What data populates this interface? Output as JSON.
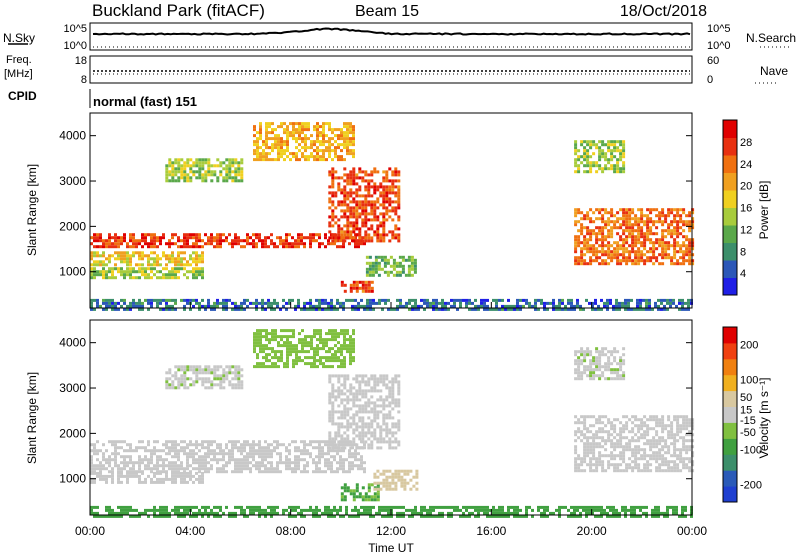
{
  "header": {
    "site": "Buckland Park (fitACF)",
    "beam": "Beam 15",
    "date": "18/Oct/2018"
  },
  "noise_panel": {
    "left_label": "N.Sky",
    "right_label": "N.Search",
    "left_ticks": [
      "10^5",
      "10^0"
    ],
    "right_ticks": [
      "10^5",
      "10^0"
    ]
  },
  "freq_panel": {
    "left_label_line1": "Freq.",
    "left_label_line2": "[MHz]",
    "left_ticks": [
      "18",
      "8"
    ],
    "right_ticks": [
      "60",
      "0"
    ],
    "right_label": "Nave"
  },
  "cpid_panel": {
    "label": "CPID",
    "mode": "normal (fast) 151"
  },
  "colors": {
    "power_scale": [
      "#1f1fe6",
      "#2b57b8",
      "#3c8f6b",
      "#5aa84a",
      "#a8cc3c",
      "#f0d020",
      "#f0a020",
      "#f07010",
      "#e83010",
      "#e00000"
    ],
    "velocity_scale": [
      "#e00000",
      "#f04010",
      "#f08010",
      "#f0b020",
      "#d8c8a0",
      "#c8c8c8",
      "#80c040",
      "#40a040",
      "#3c8f6b",
      "#2a5ab8",
      "#1f3fd0"
    ]
  },
  "chart_data": [
    {
      "type": "heatmap",
      "name": "power",
      "ylabel": "Slant Range [km]",
      "yticks": [
        1000,
        2000,
        3000,
        4000
      ],
      "ylim": [
        200,
        4500
      ],
      "xlim": [
        0,
        24
      ],
      "colorbar": {
        "label": "Power [dB]",
        "ticks": [
          4,
          8,
          12,
          16,
          20,
          24,
          28
        ],
        "range": [
          0,
          32
        ]
      },
      "features": [
        {
          "t0": 0,
          "t1": 11,
          "r0": 1550,
          "r1": 1850,
          "value": 27
        },
        {
          "t0": 0,
          "t1": 4.5,
          "r0": 1150,
          "r1": 1450,
          "value": 18
        },
        {
          "t0": 0,
          "t1": 4.5,
          "r0": 900,
          "r1": 1100,
          "value": 14
        },
        {
          "t0": 9.5,
          "t1": 12.3,
          "r0": 1700,
          "r1": 3300,
          "value": 26
        },
        {
          "t0": 3,
          "t1": 6,
          "r0": 3000,
          "r1": 3500,
          "value": 14
        },
        {
          "t0": 6.5,
          "t1": 10.5,
          "r0": 3500,
          "r1": 4300,
          "value": 20
        },
        {
          "t0": 10,
          "t1": 11.3,
          "r0": 550,
          "r1": 800,
          "value": 26
        },
        {
          "t0": 11,
          "t1": 13,
          "r0": 900,
          "r1": 1350,
          "value": 12
        },
        {
          "t0": 19.3,
          "t1": 24,
          "r0": 1200,
          "r1": 2400,
          "value": 24
        },
        {
          "t0": 19.3,
          "t1": 21.3,
          "r0": 3200,
          "r1": 3900,
          "value": 14
        },
        {
          "t0": 0,
          "t1": 24,
          "r0": 200,
          "r1": 400,
          "value": 6
        }
      ]
    },
    {
      "type": "heatmap",
      "name": "velocity",
      "ylabel": "Slant Range [km]",
      "yticks": [
        1000,
        2000,
        3000,
        4000
      ],
      "ylim": [
        200,
        4500
      ],
      "xlim": [
        0,
        24
      ],
      "xlabel": "Time UT",
      "xticks": [
        "00:00",
        "04:00",
        "08:00",
        "12:00",
        "16:00",
        "20:00",
        "00:00"
      ],
      "colorbar": {
        "label": "Velocity [m s⁻¹]",
        "ticks": [
          200,
          100,
          50,
          15,
          -15,
          -50,
          -100,
          -200
        ],
        "range": [
          -250,
          250
        ]
      },
      "features": [
        {
          "t0": 0,
          "t1": 11,
          "r0": 1150,
          "r1": 1850,
          "value": 0
        },
        {
          "t0": 0,
          "t1": 4.5,
          "r0": 900,
          "r1": 1150,
          "value": -10
        },
        {
          "t0": 9.5,
          "t1": 12.3,
          "r0": 1700,
          "r1": 3300,
          "value": 0
        },
        {
          "t0": 3,
          "t1": 6,
          "r0": 3000,
          "r1": 3500,
          "value": -20
        },
        {
          "t0": 6.5,
          "t1": 10.5,
          "r0": 3500,
          "r1": 4300,
          "value": -30
        },
        {
          "t0": 10,
          "t1": 11.5,
          "r0": 550,
          "r1": 900,
          "value": -70
        },
        {
          "t0": 11.3,
          "t1": 13,
          "r0": 800,
          "r1": 1200,
          "value": 40
        },
        {
          "t0": 19.3,
          "t1": 24,
          "r0": 1200,
          "r1": 2400,
          "value": 0
        },
        {
          "t0": 19.3,
          "t1": 21.3,
          "r0": 3200,
          "r1": 3900,
          "value": -20
        },
        {
          "t0": 0,
          "t1": 24,
          "r0": 200,
          "r1": 400,
          "value": -80
        }
      ]
    }
  ]
}
